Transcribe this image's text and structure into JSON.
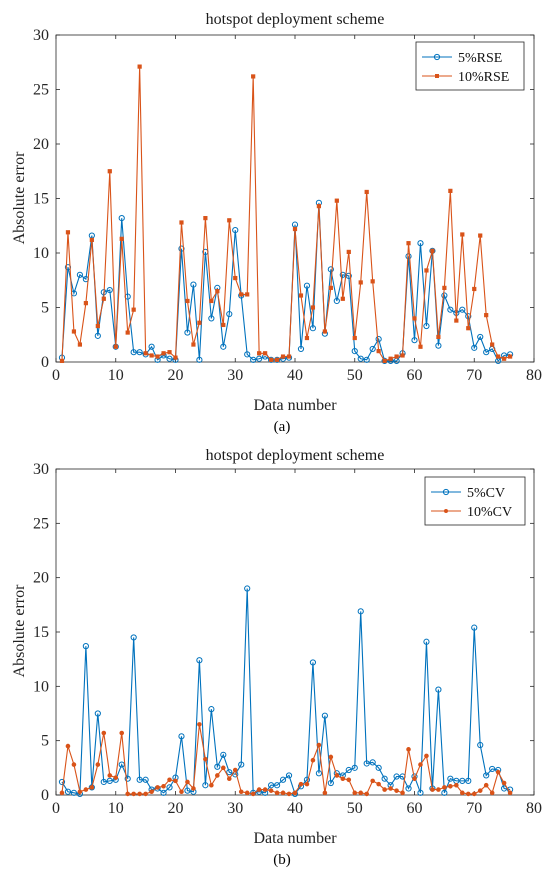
{
  "chart_data": [
    {
      "type": "line",
      "panel_label": "(a)",
      "title": "hotspot deployment scheme",
      "xlabel": "Data number",
      "ylabel": "Absolute error",
      "xlim": [
        0,
        80
      ],
      "ylim": [
        0,
        30
      ],
      "xticks": [
        0,
        10,
        20,
        30,
        40,
        50,
        60,
        70,
        80
      ],
      "yticks": [
        0,
        5,
        10,
        15,
        20,
        25,
        30
      ],
      "grid": false,
      "legend_position": "top-right",
      "x": [
        1,
        2,
        3,
        4,
        5,
        6,
        7,
        8,
        9,
        10,
        11,
        12,
        13,
        14,
        15,
        16,
        17,
        18,
        19,
        20,
        21,
        22,
        23,
        24,
        25,
        26,
        27,
        28,
        29,
        30,
        31,
        32,
        33,
        34,
        35,
        36,
        37,
        38,
        39,
        40,
        41,
        42,
        43,
        44,
        45,
        46,
        47,
        48,
        49,
        50,
        51,
        52,
        53,
        54,
        55,
        56,
        57,
        58,
        59,
        60,
        61,
        62,
        63,
        64,
        65,
        66,
        67,
        68,
        69,
        70,
        71,
        72,
        73,
        74,
        75,
        76
      ],
      "series": [
        {
          "name": "5%RSE",
          "color": "#0072BD",
          "marker": "circle",
          "values": [
            0.4,
            8.7,
            6.3,
            8.0,
            7.6,
            11.6,
            2.4,
            6.4,
            6.6,
            1.4,
            13.2,
            6.0,
            0.9,
            0.9,
            0.7,
            1.4,
            0.2,
            0.6,
            0.3,
            0.2,
            10.4,
            2.7,
            7.1,
            0.2,
            10.1,
            4.0,
            6.8,
            1.4,
            4.4,
            12.1,
            6.1,
            0.7,
            0.2,
            0.3,
            0.5,
            0.2,
            0.2,
            0.3,
            0.4,
            12.6,
            1.2,
            7.0,
            3.1,
            14.6,
            2.6,
            8.5,
            5.6,
            8.0,
            7.9,
            1.0,
            0.3,
            0.2,
            1.2,
            2.1,
            0.1,
            0.1,
            0.1,
            0.8,
            9.7,
            2.0,
            10.9,
            3.3,
            10.2,
            1.5,
            6.1,
            4.8,
            4.5,
            4.8,
            4.2,
            1.3,
            2.3,
            0.9,
            1.2,
            0.1,
            0.6,
            0.7
          ]
        },
        {
          "name": "10%RSE",
          "color": "#D95319",
          "marker": "square",
          "values": [
            0.1,
            11.9,
            2.8,
            1.6,
            5.4,
            11.2,
            3.3,
            5.8,
            17.5,
            1.4,
            11.3,
            2.7,
            4.8,
            27.1,
            0.8,
            0.6,
            0.5,
            0.8,
            0.9,
            0.4,
            12.8,
            5.6,
            1.6,
            3.6,
            13.2,
            5.6,
            6.5,
            3.4,
            13.0,
            7.7,
            6.2,
            6.2,
            26.2,
            0.8,
            0.8,
            0.2,
            0.2,
            0.5,
            0.5,
            12.2,
            6.1,
            2.2,
            5.0,
            14.3,
            2.8,
            6.8,
            14.8,
            5.8,
            10.1,
            2.2,
            7.3,
            15.6,
            7.4,
            1.0,
            0.1,
            0.3,
            0.5,
            0.6,
            10.9,
            4.0,
            1.4,
            8.4,
            10.2,
            2.3,
            6.8,
            15.7,
            3.8,
            11.7,
            3.1,
            6.7,
            11.6,
            4.3,
            1.6,
            0.5,
            0.3,
            0.5
          ]
        }
      ]
    },
    {
      "type": "line",
      "panel_label": "(b)",
      "title": "hotspot deployment scheme",
      "xlabel": "Data number",
      "ylabel": "Absolute error",
      "xlim": [
        0,
        80
      ],
      "ylim": [
        0,
        30
      ],
      "xticks": [
        0,
        10,
        20,
        30,
        40,
        50,
        60,
        70,
        80
      ],
      "yticks": [
        0,
        5,
        10,
        15,
        20,
        25,
        30
      ],
      "grid": false,
      "legend_position": "top-right",
      "x": [
        1,
        2,
        3,
        4,
        5,
        6,
        7,
        8,
        9,
        10,
        11,
        12,
        13,
        14,
        15,
        16,
        17,
        18,
        19,
        20,
        21,
        22,
        23,
        24,
        25,
        26,
        27,
        28,
        29,
        30,
        31,
        32,
        33,
        34,
        35,
        36,
        37,
        38,
        39,
        40,
        41,
        42,
        43,
        44,
        45,
        46,
        47,
        48,
        49,
        50,
        51,
        52,
        53,
        54,
        55,
        56,
        57,
        58,
        59,
        60,
        61,
        62,
        63,
        64,
        65,
        66,
        67,
        68,
        69,
        70,
        71,
        72,
        73,
        74,
        75,
        76
      ],
      "series": [
        {
          "name": "5%CV",
          "color": "#0072BD",
          "marker": "circle",
          "values": [
            1.2,
            0.3,
            0.2,
            0.1,
            13.7,
            0.7,
            7.5,
            1.2,
            1.3,
            1.4,
            2.8,
            1.5,
            14.5,
            1.4,
            1.4,
            0.5,
            0.6,
            0.2,
            0.7,
            1.6,
            5.4,
            0.4,
            0.3,
            12.4,
            0.9,
            7.9,
            2.6,
            3.7,
            2.1,
            1.9,
            2.8,
            19.0,
            0.2,
            0.3,
            0.2,
            0.9,
            0.9,
            1.4,
            1.8,
            0.1,
            0.8,
            1.4,
            12.2,
            2.0,
            7.3,
            1.1,
            2.0,
            1.8,
            2.3,
            2.5,
            16.9,
            2.9,
            3.0,
            2.5,
            1.5,
            0.9,
            1.7,
            1.7,
            0.6,
            1.7,
            0.2,
            14.1,
            0.6,
            9.7,
            0.2,
            1.5,
            1.3,
            1.3,
            1.3,
            15.4,
            4.6,
            1.8,
            2.4,
            2.3,
            0.6,
            0.5
          ]
        },
        {
          "name": "10%CV",
          "color": "#D95319",
          "marker": "circle",
          "values": [
            0.2,
            4.5,
            2.8,
            0.3,
            0.5,
            0.7,
            2.8,
            5.7,
            1.8,
            1.6,
            5.7,
            0.1,
            0.1,
            0.1,
            0.1,
            0.3,
            0.7,
            0.8,
            1.4,
            1.3,
            0.3,
            1.2,
            0.6,
            6.5,
            3.3,
            0.9,
            1.8,
            2.5,
            1.5,
            2.3,
            0.3,
            0.2,
            0.1,
            0.5,
            0.5,
            0.4,
            0.2,
            0.2,
            0.1,
            0.2,
            1.0,
            1.0,
            3.2,
            4.6,
            0.2,
            3.5,
            1.8,
            1.5,
            1.4,
            0.2,
            0.2,
            0.1,
            1.3,
            1.0,
            0.5,
            0.6,
            0.4,
            0.2,
            4.2,
            1.5,
            2.8,
            3.6,
            0.5,
            0.5,
            0.7,
            0.8,
            0.9,
            0.2,
            0.1,
            0.1,
            0.4,
            0.9,
            0.2,
            2.1,
            1.1,
            0.2
          ]
        }
      ]
    }
  ]
}
